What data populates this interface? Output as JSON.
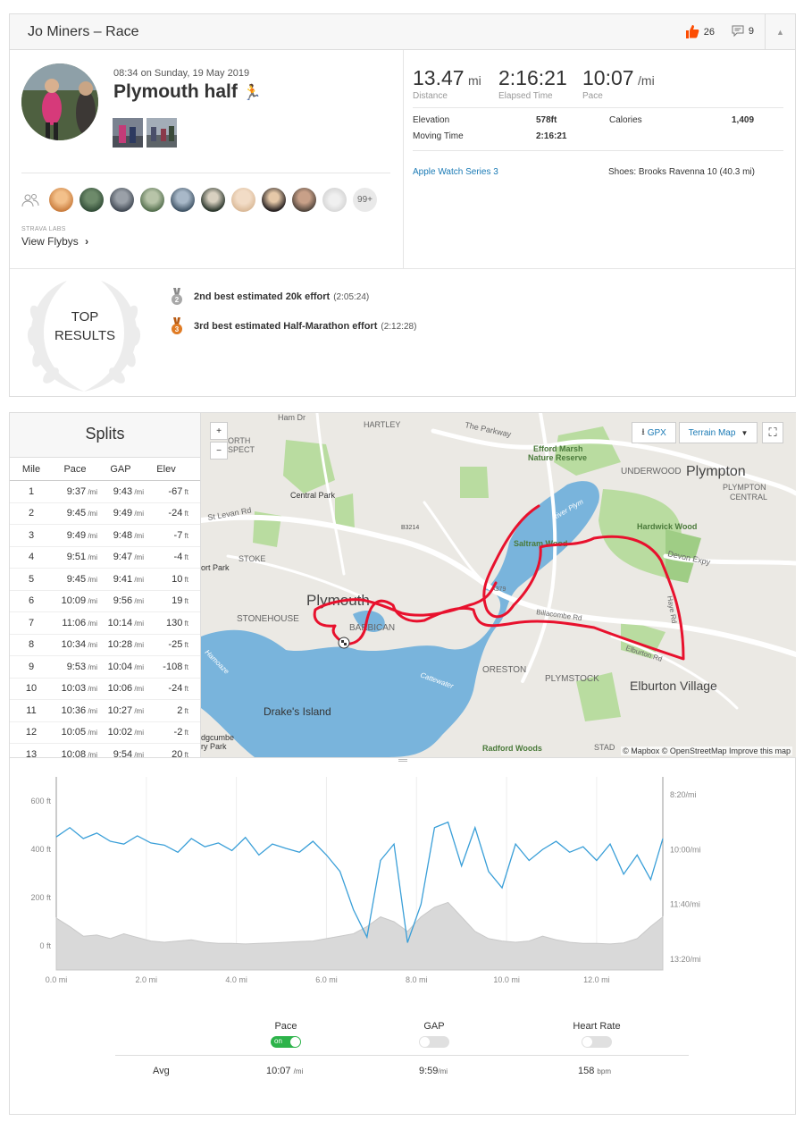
{
  "header": {
    "title": "Jo Miners – Race",
    "kudos_count": "26",
    "comment_count": "9"
  },
  "activity": {
    "date": "08:34 on Sunday, 19 May 2019",
    "name": "Plymouth half",
    "name_emoji": "🏃",
    "labs": "STRAVA LABS",
    "view_flybys": "View Flybys",
    "flyby_more": "99+"
  },
  "stats": {
    "distance": {
      "value": "13.47",
      "unit": "mi",
      "label": "Distance"
    },
    "elapsed": {
      "value": "2:16:21",
      "label": "Elapsed Time"
    },
    "pace": {
      "value": "10:07",
      "unit": "/mi",
      "label": "Pace"
    },
    "elevation_label": "Elevation",
    "elevation_value": "578ft",
    "calories_label": "Calories",
    "calories_value": "1,409",
    "moving_label": "Moving Time",
    "moving_value": "2:16:21",
    "device": "Apple Watch Series 3",
    "shoes": "Shoes: Brooks Ravenna 10 (40.3 mi)"
  },
  "top_results": {
    "title_line1": "TOP",
    "title_line2": "RESULTS",
    "items": [
      {
        "rank": "2",
        "text": "2nd best estimated 20k effort",
        "time": "(2:05:24)",
        "color": "#a8a8a8"
      },
      {
        "rank": "3",
        "text": "3rd best estimated Half-Marathon effort",
        "time": "(2:12:28)",
        "color": "#e07b24"
      }
    ]
  },
  "splits": {
    "title": "Splits",
    "headers": [
      "Mile",
      "Pace",
      "GAP",
      "Elev"
    ],
    "pace_unit": "/mi",
    "elev_unit": "ft",
    "rows": [
      [
        "1",
        "9:37",
        "9:43",
        "-67"
      ],
      [
        "2",
        "9:45",
        "9:49",
        "-24"
      ],
      [
        "3",
        "9:49",
        "9:48",
        "-7"
      ],
      [
        "4",
        "9:51",
        "9:47",
        "-4"
      ],
      [
        "5",
        "9:45",
        "9:41",
        "10"
      ],
      [
        "6",
        "10:09",
        "9:56",
        "19"
      ],
      [
        "7",
        "11:06",
        "10:14",
        "130"
      ],
      [
        "8",
        "10:34",
        "10:28",
        "-25"
      ],
      [
        "9",
        "9:53",
        "10:04",
        "-108"
      ],
      [
        "10",
        "10:03",
        "10:06",
        "-24"
      ],
      [
        "11",
        "10:36",
        "10:27",
        "2"
      ],
      [
        "12",
        "10:05",
        "10:02",
        "-2"
      ],
      [
        "13",
        "10:08",
        "9:54",
        "20"
      ]
    ]
  },
  "map": {
    "gpx_label": "GPX",
    "terrain_label": "Terrain Map",
    "zoom_in": "+",
    "zoom_out": "−",
    "attribution": "© Mapbox © OpenStreetMap Improve this map",
    "places": [
      "Ham Dr",
      "HARTLEY",
      "The Parkway",
      "Efford Marsh",
      "Nature Reserve",
      "UNDERWOOD",
      "Plympton",
      "PLYMPTON",
      "CENTRAL",
      "Central Park",
      "St Levan Rd",
      "STOKE",
      "B3214",
      "River Plym",
      "Saltram Wood",
      "Hardwick Wood",
      "Devon Expy",
      "ort Park",
      "Plymouth",
      "STONEHOUSE",
      "BARBICAN",
      "A379",
      "Billacombe Rd",
      "Elburton Rd",
      "Haye Rd",
      "ORESTON",
      "PLYMSTOCK",
      "Elburton Village",
      "Cattewater",
      "Drake's Island",
      "Radford Woods",
      "Local Nature",
      "STAD",
      "Hamoaze",
      "dgcumbe",
      "ry Park",
      "ORTH",
      "SPECT"
    ]
  },
  "chart_data": {
    "type": "line",
    "xlabel": "",
    "x_ticks": [
      "0.0 mi",
      "2.0 mi",
      "4.0 mi",
      "6.0 mi",
      "8.0 mi",
      "10.0 mi",
      "12.0 mi"
    ],
    "xlim": [
      0,
      13.47
    ],
    "y_left_ticks": [
      "600 ft",
      "400 ft",
      "200 ft",
      "0 ft"
    ],
    "ylim_left": [
      -100,
      700
    ],
    "y_right_ticks": [
      "8:20/mi",
      "10:00/mi",
      "11:40/mi",
      "13:20/mi"
    ],
    "series": [
      {
        "name": "Elevation",
        "unit": "ft",
        "x": [
          0,
          0.3,
          0.6,
          0.9,
          1.2,
          1.5,
          1.8,
          2.1,
          2.4,
          2.7,
          3.0,
          3.3,
          3.6,
          3.9,
          4.2,
          4.5,
          4.8,
          5.1,
          5.4,
          5.7,
          6.0,
          6.3,
          6.6,
          6.9,
          7.2,
          7.5,
          7.8,
          8.1,
          8.4,
          8.7,
          9.0,
          9.3,
          9.6,
          9.9,
          10.2,
          10.5,
          10.8,
          11.1,
          11.4,
          11.7,
          12.0,
          12.3,
          12.6,
          12.9,
          13.2,
          13.47
        ],
        "values": [
          115,
          80,
          40,
          45,
          30,
          50,
          35,
          20,
          15,
          20,
          25,
          15,
          10,
          10,
          8,
          10,
          12,
          15,
          18,
          20,
          30,
          40,
          50,
          80,
          120,
          100,
          60,
          120,
          160,
          180,
          120,
          60,
          30,
          20,
          15,
          20,
          40,
          25,
          15,
          10,
          10,
          8,
          12,
          30,
          80,
          120
        ]
      },
      {
        "name": "Pace",
        "unit": "/mi",
        "x": [
          0,
          0.3,
          0.6,
          0.9,
          1.2,
          1.5,
          1.8,
          2.1,
          2.4,
          2.7,
          3.0,
          3.3,
          3.6,
          3.9,
          4.2,
          4.5,
          4.8,
          5.1,
          5.4,
          5.7,
          6.0,
          6.3,
          6.6,
          6.9,
          7.2,
          7.5,
          7.8,
          8.1,
          8.4,
          8.7,
          9.0,
          9.3,
          9.6,
          9.9,
          10.2,
          10.5,
          10.8,
          11.1,
          11.4,
          11.7,
          12.0,
          12.3,
          12.6,
          12.9,
          13.2,
          13.47
        ],
        "values": [
          "9:37",
          "9:20",
          "9:40",
          "9:30",
          "9:45",
          "9:50",
          "9:35",
          "9:48",
          "9:52",
          "10:05",
          "9:40",
          "9:55",
          "9:48",
          "10:02",
          "9:38",
          "10:10",
          "9:50",
          "9:58",
          "10:05",
          "9:45",
          "10:10",
          "10:40",
          "11:50",
          "12:40",
          "10:20",
          "9:50",
          "12:50",
          "11:40",
          "9:20",
          "9:10",
          "10:30",
          "9:20",
          "10:40",
          "11:10",
          "9:50",
          "10:20",
          "10:00",
          "9:45",
          "10:05",
          "9:55",
          "10:20",
          "9:50",
          "10:45",
          "10:10",
          "10:55",
          "9:40"
        ]
      }
    ]
  },
  "toggles": {
    "pace_label": "Pace",
    "pace_on": "on",
    "gap_label": "GAP",
    "hr_label": "Heart Rate"
  },
  "averages": {
    "label": "Avg",
    "pace": "10:07",
    "pace_unit": "/mi",
    "gap": "9:59",
    "gap_unit": "/mi",
    "hr": "158",
    "hr_unit": "bpm"
  },
  "colors": {
    "accent": "#fc4c02",
    "pace_line": "#3a9fd8",
    "route": "#e8112d",
    "water": "#7fb8dd",
    "park": "#a3d38a"
  }
}
